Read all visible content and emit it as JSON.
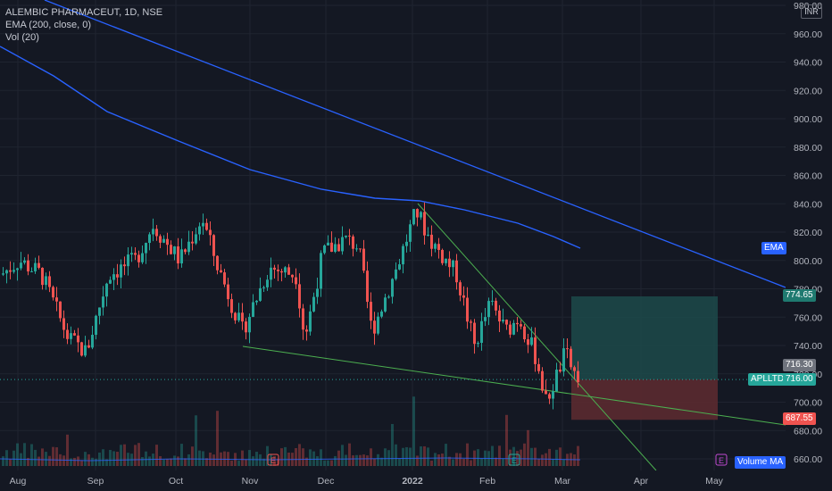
{
  "header": {
    "symbol_line": "ALEMBIC PHARMACEUT, 1D, NSE",
    "ema_line": "EMA (200, close, 0)",
    "vol_line": "Vol (20)"
  },
  "currency_badge": "INR",
  "tags": {
    "ema": "EMA",
    "target": "774.65",
    "last_price": "716.30",
    "symbol_label": "APLLTD",
    "symbol_price": "716.00",
    "stop": "687.55",
    "volume_ma": "Volume MA"
  },
  "colors": {
    "background": "#141823",
    "up": "#26a69a",
    "down": "#ef5350",
    "ema": "#2962ff",
    "trendline": "#4caf50",
    "target_zone": "#1c4a4a",
    "stop_zone": "#5a2a30"
  },
  "chart_data": {
    "type": "candlestick",
    "title": "ALEMBIC PHARMACEUT, 1D, NSE",
    "y_ticks": [
      "980.00",
      "960.00",
      "940.00",
      "920.00",
      "900.00",
      "880.00",
      "860.00",
      "840.00",
      "820.00",
      "800.00",
      "780.00",
      "760.00",
      "740.00",
      "720.00",
      "700.00",
      "680.00",
      "660.00"
    ],
    "x_ticks": [
      "Aug",
      "Sep",
      "Oct",
      "Nov",
      "Dec",
      "2022",
      "Feb",
      "Mar",
      "Apr",
      "May"
    ],
    "ylim": [
      650,
      985
    ],
    "series": [
      {
        "name": "EMA (200, close, 0)",
        "kind": "line"
      },
      {
        "name": "Vol (20)",
        "kind": "volume"
      }
    ],
    "ohlc_sample": [
      {
        "x": "Aug",
        "close": 800
      },
      {
        "x": "Sep",
        "close": 735
      },
      {
        "x": "Oct",
        "close": 795
      },
      {
        "x": "Nov",
        "close": 745
      },
      {
        "x": "Dec",
        "close": 815
      },
      {
        "x": "2022",
        "close": 835
      },
      {
        "x": "Feb",
        "close": 740
      },
      {
        "x": "Mar",
        "close": 716
      }
    ],
    "annotations": [
      {
        "type": "price_label",
        "value": 774.65
      },
      {
        "type": "price_label",
        "value": 716.3
      },
      {
        "type": "price_label",
        "value": 716.0
      },
      {
        "type": "price_label",
        "value": 687.55
      }
    ],
    "grid": true,
    "legend": "top-left"
  }
}
